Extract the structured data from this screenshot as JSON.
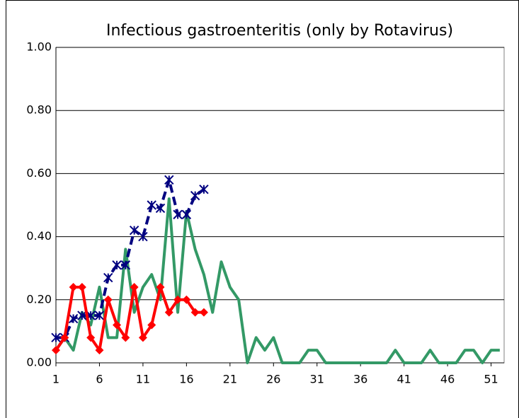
{
  "chart_data": {
    "type": "line",
    "title": "Infectious gastroenteritis (only by Rotavirus)",
    "x": [
      1,
      2,
      3,
      4,
      5,
      6,
      7,
      8,
      9,
      10,
      11,
      12,
      13,
      14,
      15,
      16,
      17,
      18,
      19,
      20,
      21,
      22,
      23,
      24,
      25,
      26,
      27,
      28,
      29,
      30,
      31,
      32,
      33,
      34,
      35,
      36,
      37,
      38,
      39,
      40,
      41,
      42,
      43,
      44,
      45,
      46,
      47,
      48,
      49,
      50,
      51,
      52
    ],
    "series": [
      {
        "color": "#339966",
        "style": "solid",
        "marker": "none",
        "values": [
          0.04,
          0.08,
          0.04,
          0.16,
          0.12,
          0.24,
          0.08,
          0.08,
          0.36,
          0.16,
          0.24,
          0.28,
          0.2,
          0.52,
          0.16,
          0.48,
          0.36,
          0.28,
          0.16,
          0.32,
          0.24,
          0.2,
          0,
          0.08,
          0.04,
          0.08,
          0,
          0,
          0,
          0.04,
          0.04,
          0,
          0,
          0,
          0,
          0,
          0,
          0,
          0,
          0.04,
          0,
          0,
          0,
          0.04,
          0,
          0,
          0,
          0.04,
          0.04,
          0,
          0.04,
          0.04
        ]
      },
      {
        "color": "#000080",
        "style": "dashed",
        "marker": "asterisk",
        "values": [
          0.08,
          0.08,
          0.14,
          0.15,
          0.15,
          0.15,
          0.27,
          0.31,
          0.31,
          0.42,
          0.4,
          0.5,
          0.49,
          0.58,
          0.47,
          0.47,
          0.53,
          0.55,
          null,
          null,
          null,
          null,
          null,
          null,
          null,
          null,
          null,
          null,
          null,
          null,
          null,
          null,
          null,
          null,
          null,
          null,
          null,
          null,
          null,
          null,
          null,
          null,
          null,
          null,
          null,
          null,
          null,
          null,
          null,
          null,
          null,
          null
        ]
      },
      {
        "color": "#ff0000",
        "style": "solid",
        "marker": "diamond",
        "values": [
          0.04,
          0.08,
          0.24,
          0.24,
          0.08,
          0.04,
          0.2,
          0.12,
          0.08,
          0.24,
          0.08,
          0.12,
          0.24,
          0.16,
          0.2,
          0.2,
          0.16,
          0.16,
          null,
          null,
          null,
          null,
          null,
          null,
          null,
          null,
          null,
          null,
          null,
          null,
          null,
          null,
          null,
          null,
          null,
          null,
          null,
          null,
          null,
          null,
          null,
          null,
          null,
          null,
          null,
          null,
          null,
          null,
          null,
          null,
          null,
          null
        ]
      }
    ],
    "xlim": [
      1,
      52.5
    ],
    "xticks": [
      1,
      6,
      11,
      16,
      21,
      26,
      31,
      36,
      41,
      46,
      51
    ],
    "ylim": [
      0,
      1
    ],
    "yticks": [
      {
        "value": 0,
        "label": "0.00"
      },
      {
        "value": 0.2,
        "label": "0.20"
      },
      {
        "value": 0.4,
        "label": "0.40"
      },
      {
        "value": 0.6,
        "label": "0.60"
      },
      {
        "value": 0.8,
        "label": "0.80"
      },
      {
        "value": 1,
        "label": "1.00"
      }
    ],
    "grid": true
  }
}
